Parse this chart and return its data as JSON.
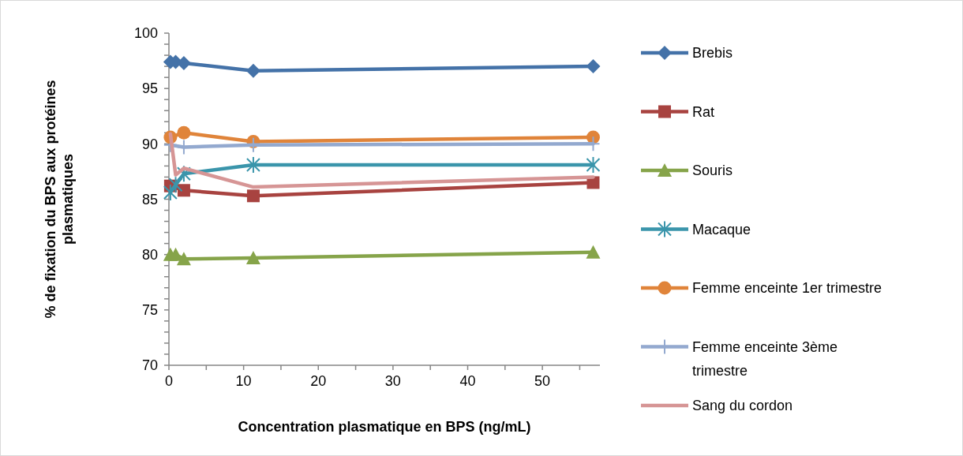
{
  "chart_data": {
    "type": "line",
    "xlabel": "Concentration plasmatique  en BPS (ng/mL)",
    "ylabel": "% de fixation du BPS aux protéines plasmatiques",
    "x": [
      0.2,
      0.9,
      2.0,
      11.3,
      56.8
    ],
    "xlim": [
      0,
      57.7
    ],
    "ylim": [
      70,
      100
    ],
    "xticks": [
      0,
      {
        "value": 5,
        "label": null
      },
      10,
      {
        "value": 15,
        "label": null
      },
      20,
      {
        "value": 25,
        "label": null
      },
      30,
      {
        "value": 35,
        "label": null
      },
      40,
      {
        "value": 45,
        "label": null
      },
      50,
      {
        "value": 55,
        "label": null
      }
    ],
    "yticks": [
      70,
      {
        "value": 71,
        "label": null
      },
      {
        "value": 72,
        "label": null
      },
      {
        "value": 73,
        "label": null
      },
      {
        "value": 74,
        "label": null
      },
      75,
      {
        "value": 76,
        "label": null
      },
      {
        "value": 77,
        "label": null
      },
      {
        "value": 78,
        "label": null
      },
      {
        "value": 79,
        "label": null
      },
      80,
      {
        "value": 81,
        "label": null
      },
      {
        "value": 82,
        "label": null
      },
      {
        "value": 83,
        "label": null
      },
      {
        "value": 84,
        "label": null
      },
      85,
      {
        "value": 86,
        "label": null
      },
      {
        "value": 87,
        "label": null
      },
      {
        "value": 88,
        "label": null
      },
      {
        "value": 89,
        "label": null
      },
      90,
      {
        "value": 91,
        "label": null
      },
      {
        "value": 92,
        "label": null
      },
      {
        "value": 93,
        "label": null
      },
      {
        "value": 94,
        "label": null
      },
      95,
      {
        "value": 96,
        "label": null
      },
      {
        "value": 97,
        "label": null
      },
      {
        "value": 98,
        "label": null
      },
      {
        "value": 99,
        "label": null
      },
      100
    ],
    "grid": false,
    "legend": "right",
    "series": [
      {
        "name": "Brebis",
        "color": "#4472a8",
        "marker": "diamond",
        "values": [
          97.4,
          97.4,
          97.3,
          96.6,
          97.0
        ]
      },
      {
        "name": "Rat",
        "color": "#a84340",
        "marker": "square",
        "values": [
          86.2,
          null,
          85.8,
          85.3,
          86.5
        ]
      },
      {
        "name": "Souris",
        "color": "#86a44a",
        "marker": "triangle",
        "values": [
          80.0,
          80.0,
          79.6,
          79.7,
          80.2
        ]
      },
      {
        "name": "Macaque",
        "color": "#3a95ab",
        "marker": "cross",
        "values": [
          85.6,
          86.3,
          87.3,
          88.1,
          88.1
        ]
      },
      {
        "name": "Femme enceinte 1er trimestre",
        "color": "#e0843a",
        "marker": "circle",
        "values": [
          90.6,
          null,
          91.0,
          90.2,
          90.6
        ]
      },
      {
        "name": "Femme enceinte 3ème trimestre",
        "color": "#93a9cf",
        "marker": "plus",
        "values": [
          89.9,
          null,
          89.7,
          89.9,
          90.0
        ]
      },
      {
        "name": "Sang du cordon",
        "color": "#d69595",
        "marker": "none",
        "values": [
          90.9,
          87.2,
          87.8,
          86.1,
          87.0
        ]
      }
    ]
  }
}
